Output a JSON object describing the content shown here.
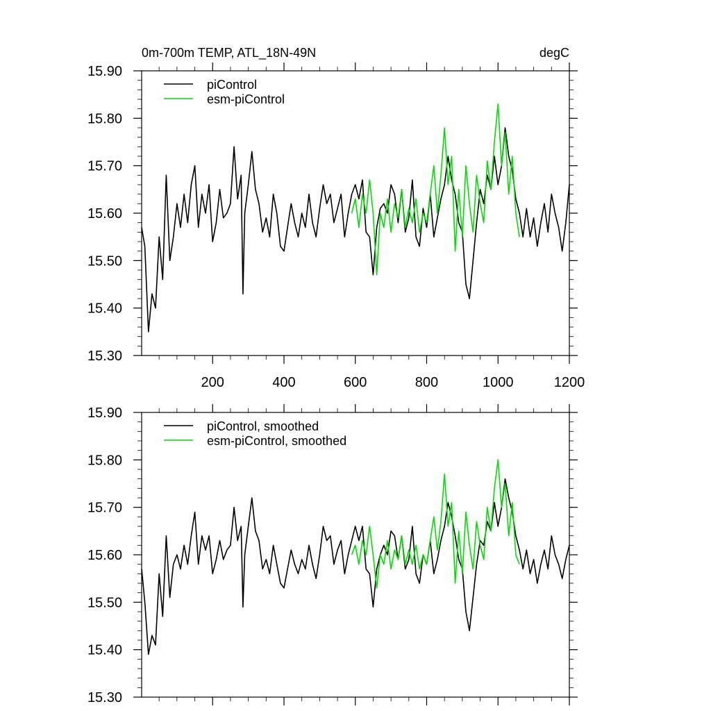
{
  "chart_data": [
    {
      "type": "line",
      "title": "0m-700m TEMP, ATL_18N-49N",
      "units": "degC",
      "xlim": [
        1,
        1200
      ],
      "ylim": [
        15.3,
        15.9
      ],
      "xticks": [
        200,
        400,
        600,
        800,
        1000,
        1200
      ],
      "xtick_labels": [
        "200",
        "400",
        "600",
        "800",
        "1000",
        "1200"
      ],
      "yticks": [
        15.3,
        15.4,
        15.5,
        15.6,
        15.7,
        15.8,
        15.9
      ],
      "ytick_labels": [
        "15.30",
        "15.40",
        "15.50",
        "15.60",
        "15.70",
        "15.80",
        "15.90"
      ],
      "legend_position": "top-left",
      "series": [
        {
          "name": "piControl",
          "color": "#000000",
          "x": [
            1,
            10,
            20,
            30,
            40,
            50,
            60,
            70,
            80,
            90,
            100,
            110,
            120,
            130,
            140,
            150,
            160,
            170,
            180,
            190,
            200,
            210,
            220,
            230,
            240,
            250,
            260,
            270,
            280,
            285,
            290,
            300,
            310,
            320,
            330,
            340,
            350,
            360,
            370,
            380,
            390,
            400,
            410,
            420,
            430,
            440,
            450,
            460,
            470,
            480,
            490,
            500,
            510,
            520,
            530,
            540,
            550,
            560,
            570,
            580,
            590,
            600,
            610,
            620,
            630,
            640,
            650,
            660,
            670,
            680,
            690,
            700,
            710,
            720,
            730,
            740,
            750,
            760,
            770,
            780,
            790,
            800,
            810,
            820,
            830,
            840,
            850,
            860,
            870,
            880,
            890,
            900,
            910,
            920,
            930,
            940,
            950,
            960,
            970,
            980,
            990,
            1000,
            1010,
            1020,
            1030,
            1040,
            1050,
            1060,
            1070,
            1080,
            1090,
            1100,
            1110,
            1120,
            1130,
            1140,
            1150,
            1160,
            1170,
            1180,
            1190,
            1200
          ],
          "values": [
            15.57,
            15.53,
            15.35,
            15.43,
            15.4,
            15.55,
            15.46,
            15.68,
            15.5,
            15.55,
            15.62,
            15.57,
            15.64,
            15.58,
            15.66,
            15.7,
            15.57,
            15.64,
            15.6,
            15.66,
            15.54,
            15.58,
            15.65,
            15.59,
            15.6,
            15.62,
            15.74,
            15.63,
            15.68,
            15.43,
            15.6,
            15.66,
            15.73,
            15.65,
            15.62,
            15.56,
            15.59,
            15.55,
            15.64,
            15.6,
            15.53,
            15.52,
            15.57,
            15.62,
            15.58,
            15.55,
            15.6,
            15.57,
            15.64,
            15.58,
            15.55,
            15.61,
            15.66,
            15.62,
            15.64,
            15.58,
            15.61,
            15.64,
            15.55,
            15.6,
            15.64,
            15.66,
            15.63,
            15.67,
            15.56,
            15.55,
            15.47,
            15.57,
            15.61,
            15.62,
            15.6,
            15.66,
            15.64,
            15.58,
            15.65,
            15.56,
            15.59,
            15.67,
            15.55,
            15.53,
            15.61,
            15.57,
            15.64,
            15.55,
            15.59,
            15.63,
            15.66,
            15.72,
            15.67,
            15.64,
            15.58,
            15.56,
            15.45,
            15.42,
            15.5,
            15.58,
            15.65,
            15.62,
            15.68,
            15.65,
            15.72,
            15.66,
            15.7,
            15.78,
            15.72,
            15.69,
            15.63,
            15.6,
            15.55,
            15.61,
            15.55,
            15.59,
            15.53,
            15.58,
            15.62,
            15.56,
            15.64,
            15.6,
            15.57,
            15.52,
            15.58,
            15.66
          ]
        },
        {
          "name": "esm-piControl",
          "color": "#00dd00",
          "x": [
            590,
            600,
            610,
            620,
            630,
            640,
            650,
            660,
            670,
            680,
            690,
            700,
            710,
            720,
            730,
            740,
            750,
            760,
            770,
            780,
            790,
            800,
            810,
            820,
            830,
            840,
            850,
            860,
            870,
            880,
            890,
            900,
            910,
            920,
            930,
            940,
            950,
            960,
            970,
            980,
            990,
            1000,
            1010,
            1020,
            1030,
            1040,
            1050,
            1060
          ],
          "values": [
            15.6,
            15.63,
            15.57,
            15.64,
            15.6,
            15.67,
            15.6,
            15.47,
            15.6,
            15.57,
            15.63,
            15.56,
            15.62,
            15.59,
            15.65,
            15.57,
            15.61,
            15.58,
            15.63,
            15.56,
            15.6,
            15.58,
            15.64,
            15.7,
            15.6,
            15.68,
            15.78,
            15.66,
            15.72,
            15.52,
            15.65,
            15.55,
            15.7,
            15.62,
            15.56,
            15.68,
            15.62,
            15.58,
            15.71,
            15.65,
            15.75,
            15.83,
            15.7,
            15.77,
            15.64,
            15.72,
            15.6,
            15.55
          ]
        }
      ]
    },
    {
      "type": "line",
      "title": "",
      "xlim": [
        1,
        1200
      ],
      "ylim": [
        15.3,
        15.9
      ],
      "yticks": [
        15.3,
        15.4,
        15.5,
        15.6,
        15.7,
        15.8,
        15.9
      ],
      "ytick_labels": [
        "15.30",
        "15.40",
        "15.50",
        "15.60",
        "15.70",
        "15.80",
        "15.90"
      ],
      "legend_position": "top-left",
      "series": [
        {
          "name": "piControl, smoothed",
          "color": "#000000",
          "x": [
            1,
            10,
            20,
            30,
            40,
            50,
            60,
            70,
            80,
            90,
            100,
            110,
            120,
            130,
            140,
            150,
            160,
            170,
            180,
            190,
            200,
            210,
            220,
            230,
            240,
            250,
            260,
            270,
            280,
            285,
            290,
            300,
            310,
            320,
            330,
            340,
            350,
            360,
            370,
            380,
            390,
            400,
            410,
            420,
            430,
            440,
            450,
            460,
            470,
            480,
            490,
            500,
            510,
            520,
            530,
            540,
            550,
            560,
            570,
            580,
            590,
            600,
            610,
            620,
            630,
            640,
            650,
            660,
            670,
            680,
            690,
            700,
            710,
            720,
            730,
            740,
            750,
            760,
            770,
            780,
            790,
            800,
            810,
            820,
            830,
            840,
            850,
            860,
            870,
            880,
            890,
            900,
            910,
            920,
            930,
            940,
            950,
            960,
            970,
            980,
            990,
            1000,
            1010,
            1020,
            1030,
            1040,
            1050,
            1060,
            1070,
            1080,
            1090,
            1100,
            1110,
            1120,
            1130,
            1140,
            1150,
            1160,
            1170,
            1180,
            1190,
            1200
          ],
          "values": [
            15.57,
            15.5,
            15.39,
            15.43,
            15.41,
            15.56,
            15.47,
            15.64,
            15.51,
            15.58,
            15.6,
            15.57,
            15.62,
            15.58,
            15.64,
            15.69,
            15.58,
            15.64,
            15.61,
            15.64,
            15.56,
            15.59,
            15.63,
            15.59,
            15.61,
            15.62,
            15.7,
            15.63,
            15.66,
            15.49,
            15.6,
            15.66,
            15.72,
            15.65,
            15.63,
            15.57,
            15.59,
            15.56,
            15.62,
            15.58,
            15.54,
            15.53,
            15.57,
            15.61,
            15.58,
            15.56,
            15.59,
            15.57,
            15.62,
            15.58,
            15.55,
            15.6,
            15.66,
            15.63,
            15.64,
            15.58,
            15.61,
            15.63,
            15.56,
            15.6,
            15.63,
            15.66,
            15.63,
            15.66,
            15.57,
            15.56,
            15.49,
            15.57,
            15.6,
            15.62,
            15.6,
            15.65,
            15.64,
            15.59,
            15.64,
            15.57,
            15.59,
            15.66,
            15.56,
            15.54,
            15.6,
            15.58,
            15.63,
            15.56,
            15.59,
            15.63,
            15.66,
            15.71,
            15.68,
            15.64,
            15.59,
            15.57,
            15.48,
            15.44,
            15.51,
            15.58,
            15.63,
            15.62,
            15.67,
            15.65,
            15.71,
            15.66,
            15.7,
            15.76,
            15.72,
            15.69,
            15.64,
            15.61,
            15.57,
            15.61,
            15.56,
            15.59,
            15.54,
            15.58,
            15.61,
            15.57,
            15.64,
            15.6,
            15.58,
            15.55,
            15.59,
            15.62
          ]
        },
        {
          "name": "esm-piControl, smoothed",
          "color": "#00dd00",
          "x": [
            590,
            600,
            610,
            620,
            630,
            640,
            650,
            660,
            670,
            680,
            690,
            700,
            710,
            720,
            730,
            740,
            750,
            760,
            770,
            780,
            790,
            800,
            810,
            820,
            830,
            840,
            850,
            860,
            870,
            880,
            890,
            900,
            910,
            920,
            930,
            940,
            950,
            960,
            970,
            980,
            990,
            1000,
            1010,
            1020,
            1030,
            1040,
            1050,
            1060
          ],
          "values": [
            15.6,
            15.62,
            15.58,
            15.63,
            15.6,
            15.66,
            15.6,
            15.53,
            15.6,
            15.58,
            15.63,
            15.57,
            15.61,
            15.59,
            15.64,
            15.58,
            15.61,
            15.58,
            15.62,
            15.57,
            15.6,
            15.58,
            15.63,
            15.68,
            15.61,
            15.67,
            15.77,
            15.66,
            15.71,
            15.54,
            15.65,
            15.56,
            15.69,
            15.62,
            15.57,
            15.67,
            15.62,
            15.59,
            15.7,
            15.65,
            15.74,
            15.8,
            15.7,
            15.75,
            15.64,
            15.71,
            15.6,
            15.58
          ]
        }
      ]
    }
  ]
}
